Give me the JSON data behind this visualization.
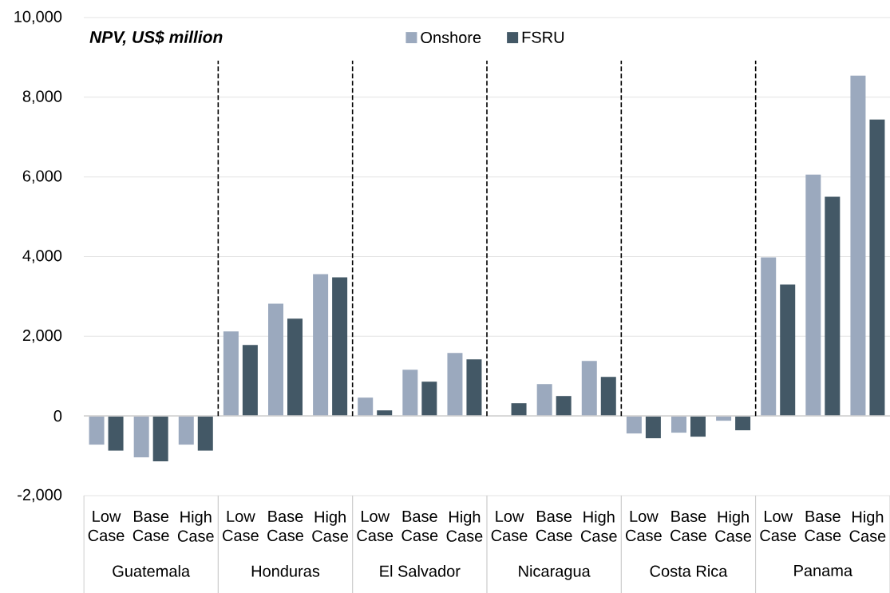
{
  "chart_data": {
    "type": "bar",
    "title": "NPV, US$ million",
    "categories": [
      "Low Case",
      "Base Case",
      "High Case",
      "Low Case",
      "Base Case",
      "High Case",
      "Low Case",
      "Base Case",
      "High Case",
      "Low Case",
      "Base Case",
      "High Case",
      "Low Case",
      "Base Case",
      "High Case",
      "Low Case",
      "Base Case",
      "High Case"
    ],
    "annotations": [
      "Guatemala",
      "Honduras",
      "El Salvador",
      "Nicaragua",
      "Costa Rica",
      "Panama"
    ],
    "series": [
      {
        "name": "Onshore",
        "color": "#9ba9be",
        "values": [
          -720,
          -1040,
          -720,
          2120,
          2820,
          3560,
          460,
          1160,
          1580,
          0,
          800,
          1380,
          -440,
          -420,
          -120,
          3980,
          6060,
          8540
        ]
      },
      {
        "name": "FSRU",
        "color": "#435866",
        "values": [
          -870,
          -1140,
          -870,
          1780,
          2440,
          3480,
          140,
          860,
          1420,
          320,
          500,
          980,
          -560,
          -520,
          -360,
          3300,
          5500,
          7440
        ]
      }
    ],
    "ylim": [
      -2000,
      10000
    ],
    "yticks": [
      {
        "value": -2000,
        "label": "-2,000"
      },
      0,
      {
        "value": 2000,
        "label": "2,000"
      },
      {
        "value": 4000,
        "label": "4,000"
      },
      {
        "value": 6000,
        "label": "6,000"
      },
      {
        "value": 8000,
        "label": "8,000"
      },
      {
        "value": 10000,
        "label": "10,000"
      }
    ],
    "grid": "y",
    "legend": "top"
  }
}
